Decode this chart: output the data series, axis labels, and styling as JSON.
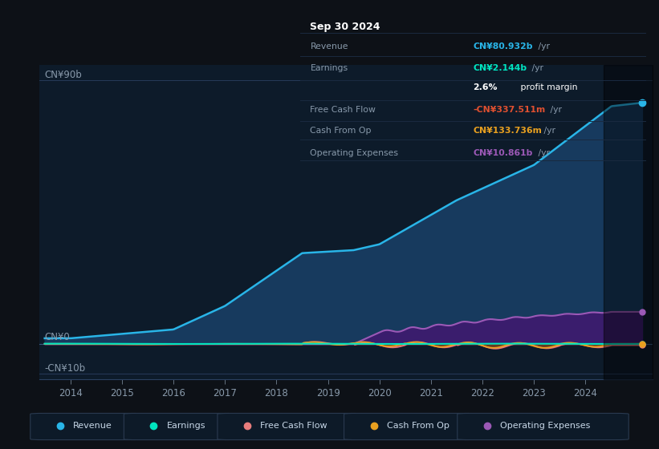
{
  "bg_color": "#0d1117",
  "plot_bg_color": "#0d1b2a",
  "text_color_dim": "#8899aa",
  "ylabel_top": "CN¥90b",
  "ylabel_zero": "CN¥0",
  "ylabel_bottom": "-CN¥10b",
  "xlabels": [
    "2014",
    "2015",
    "2016",
    "2017",
    "2018",
    "2019",
    "2020",
    "2021",
    "2022",
    "2023",
    "2024"
  ],
  "xtick_positions": [
    2014,
    2015,
    2016,
    2017,
    2018,
    2019,
    2020,
    2021,
    2022,
    2023,
    2024
  ],
  "legend_items": [
    "Revenue",
    "Earnings",
    "Free Cash Flow",
    "Cash From Op",
    "Operating Expenses"
  ],
  "legend_colors": [
    "#29b5e8",
    "#00e5c0",
    "#e87d7d",
    "#e8a020",
    "#9b59b6"
  ],
  "info_box": {
    "title": "Sep 30 2024",
    "rows": [
      {
        "label": "Revenue",
        "value": "CN¥80.932b",
        "unit": " /yr",
        "value_color": "#29b5e8"
      },
      {
        "label": "Earnings",
        "value": "CN¥2.144b",
        "unit": " /yr",
        "value_color": "#00e5c0"
      },
      {
        "label": "",
        "bold": "2.6%",
        "rest": " profit margin",
        "value_color": "#ffffff"
      },
      {
        "label": "Free Cash Flow",
        "value": "-CN¥337.511m",
        "unit": " /yr",
        "value_color": "#e05030"
      },
      {
        "label": "Cash From Op",
        "value": "CN¥133.736m",
        "unit": " /yr",
        "value_color": "#e8a020"
      },
      {
        "label": "Operating Expenses",
        "value": "CN¥10.861b",
        "unit": " /yr",
        "value_color": "#9b59b6"
      }
    ]
  },
  "ylim": [
    -12,
    95
  ],
  "xlim": [
    2013.4,
    2025.3
  ]
}
